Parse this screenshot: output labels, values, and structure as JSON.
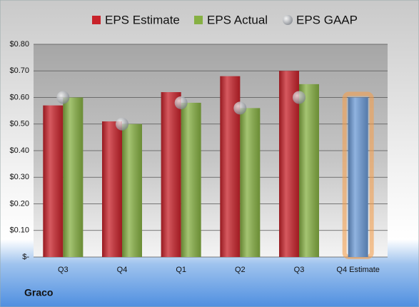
{
  "chart_data": {
    "type": "bar",
    "company": "Graco",
    "categories": [
      "Q3",
      "Q4",
      "Q1",
      "Q2",
      "Q3",
      "Q4 Estimate"
    ],
    "series": [
      {
        "name": "EPS Estimate",
        "color": "#c8222a",
        "colors": [
          "#c8222a",
          "#c8222a",
          "#c8222a",
          "#c8222a",
          "#c8222a",
          "#6b9ad6"
        ],
        "values": [
          0.57,
          0.51,
          0.62,
          0.68,
          0.7,
          0.6
        ]
      },
      {
        "name": "EPS Actual",
        "color": "#86b043",
        "values": [
          0.6,
          0.5,
          0.58,
          0.56,
          0.65,
          null
        ]
      },
      {
        "name": "EPS GAAP",
        "color": "#b8bcc4",
        "marker": "circle",
        "values": [
          0.6,
          0.5,
          0.58,
          0.56,
          0.6,
          null
        ]
      }
    ],
    "ylim": [
      0,
      0.8
    ],
    "yticks": [
      {
        "value": 0,
        "label": "$-"
      },
      {
        "value": 0.1,
        "label": "$0.10"
      },
      {
        "value": 0.2,
        "label": "$0.20"
      },
      {
        "value": 0.3,
        "label": "$0.30"
      },
      {
        "value": 0.4,
        "label": "$0.40"
      },
      {
        "value": 0.5,
        "label": "$0.50"
      },
      {
        "value": 0.6,
        "label": "$0.60"
      },
      {
        "value": 0.7,
        "label": "$0.70"
      },
      {
        "value": 0.8,
        "label": "$0.80"
      }
    ],
    "grid": true
  }
}
